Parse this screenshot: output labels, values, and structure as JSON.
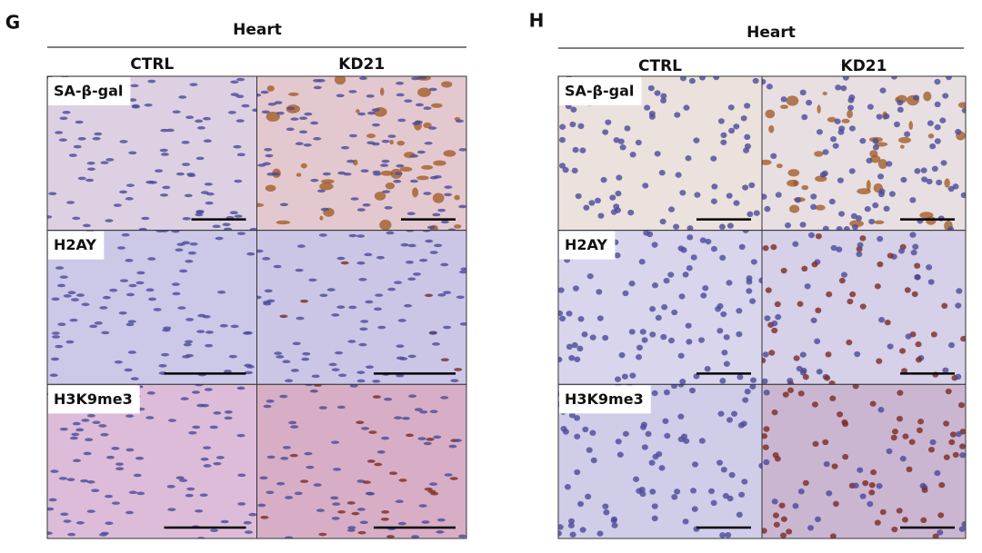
{
  "panels": [
    {
      "letter": "G",
      "title": "Heart",
      "columns": [
        "CTRL",
        "KD21"
      ],
      "rows": [
        "SA-β-gal",
        "H2AY",
        "H3K9me3"
      ]
    },
    {
      "letter": "H",
      "title": "Heart",
      "columns": [
        "CTRL",
        "KD21"
      ],
      "rows": [
        "SA-β-gal",
        "H2AY",
        "H3K9me3"
      ]
    }
  ]
}
